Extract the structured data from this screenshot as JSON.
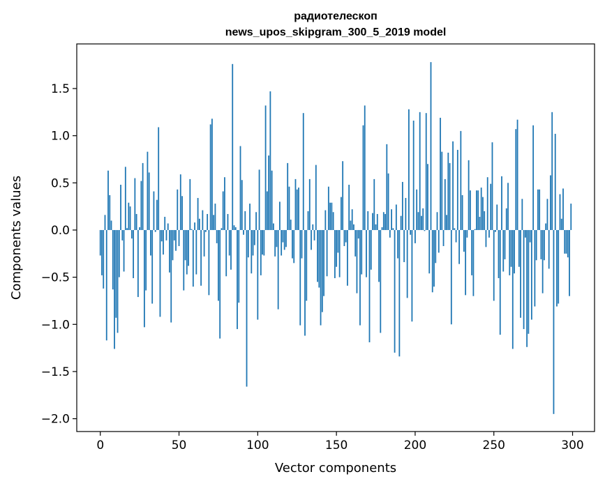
{
  "chart_data": {
    "type": "bar",
    "title": [
      "радиотелескоп",
      "news_upos_skipgram_300_5_2019 model"
    ],
    "xlabel": "Vector components",
    "ylabel": "Components values",
    "xlim": [
      -14.95,
      313.95
    ],
    "ylim": [
      -2.136,
      1.973
    ],
    "xticks": [
      0,
      50,
      100,
      150,
      200,
      250,
      300
    ],
    "xtick_labels": [
      "0",
      "50",
      "100",
      "150",
      "200",
      "250",
      "300"
    ],
    "yticks": [
      -2.0,
      -1.5,
      -1.0,
      -0.5,
      0.0,
      0.5,
      1.0,
      1.5
    ],
    "ytick_labels": [
      "−2.0",
      "−1.5",
      "−1.0",
      "−0.5",
      "0.0",
      "0.5",
      "1.0",
      "1.5"
    ],
    "grid": false,
    "bar_color": "#1f77b4",
    "bar_width": 0.8,
    "values": [
      -0.27,
      -0.48,
      -0.62,
      0.16,
      -1.17,
      0.63,
      0.37,
      0.1,
      -0.63,
      -1.26,
      -0.93,
      -1.09,
      -0.5,
      0.48,
      -0.11,
      -0.44,
      0.67,
      0.02,
      0.29,
      0.25,
      -0.09,
      -0.51,
      0.55,
      0.17,
      -0.71,
      0.03,
      0.52,
      0.71,
      -1.03,
      -0.64,
      0.83,
      0.61,
      -0.27,
      -0.78,
      0.41,
      -0.02,
      0.32,
      1.09,
      -0.92,
      -0.12,
      -0.26,
      0.14,
      -0.11,
      0.07,
      -0.45,
      -0.98,
      -0.32,
      -0.11,
      -0.22,
      0.43,
      -0.17,
      0.59,
      0.36,
      -0.64,
      -0.32,
      -0.47,
      -0.38,
      0.54,
      0.01,
      -0.6,
      0.08,
      -0.47,
      0.34,
      0.12,
      -0.59,
      0.21,
      -0.28,
      -0.02,
      0.17,
      -0.69,
      1.12,
      1.18,
      0.16,
      0.28,
      -0.14,
      -0.75,
      -1.15,
      0.02,
      0.41,
      0.56,
      -0.49,
      0.17,
      -0.27,
      -0.42,
      1.76,
      0.05,
      0.03,
      -1.05,
      -0.77,
      0.89,
      0.53,
      -0.05,
      0.2,
      -1.66,
      -0.29,
      0.28,
      -0.46,
      -0.27,
      -0.16,
      0.19,
      -0.95,
      0.64,
      -0.48,
      -0.26,
      -0.27,
      1.32,
      0.41,
      0.79,
      1.47,
      0.63,
      0.07,
      -0.28,
      -0.18,
      -0.84,
      0.3,
      -0.27,
      -0.13,
      -0.21,
      -0.18,
      0.71,
      0.46,
      0.11,
      -0.3,
      -0.35,
      0.54,
      0.43,
      0.45,
      -1.01,
      -0.3,
      1.24,
      -1.12,
      -0.75,
      0.2,
      0.54,
      -0.21,
      0.06,
      -0.11,
      0.69,
      -0.55,
      -0.61,
      -1.01,
      -0.87,
      -0.7,
      0.21,
      -0.49,
      0.46,
      0.29,
      0.29,
      0.19,
      -0.51,
      -0.39,
      -0.24,
      -0.5,
      0.35,
      0.73,
      -0.17,
      -0.13,
      -0.59,
      0.48,
      0.1,
      0.22,
      0.06,
      -0.28,
      -0.67,
      -0.09,
      -1.01,
      -0.47,
      1.11,
      1.32,
      -0.5,
      0.2,
      -1.19,
      -0.42,
      0.18,
      0.54,
      0.06,
      0.17,
      -0.55,
      -1.09,
      0.03,
      0.19,
      0.17,
      0.91,
      0.6,
      -0.08,
      0.22,
      0.02,
      -1.3,
      0.27,
      -0.3,
      -1.34,
      0.15,
      0.51,
      -0.34,
      0.34,
      -0.72,
      1.28,
      -0.05,
      -0.97,
      1.16,
      -0.14,
      0.43,
      0.19,
      1.25,
      0.15,
      0.23,
      -0.01,
      1.24,
      0.7,
      -0.46,
      1.78,
      -0.66,
      -0.6,
      -0.35,
      0.19,
      -0.24,
      1.19,
      0.83,
      -0.17,
      0.54,
      0.16,
      0.82,
      0.71,
      -1.0,
      0.94,
      0.02,
      -0.13,
      0.85,
      -0.36,
      1.05,
      0.37,
      -0.23,
      -0.69,
      -0.08,
      0.74,
      0.42,
      -0.48,
      -0.7,
      0.01,
      0.42,
      0.42,
      0.14,
      0.45,
      0.35,
      0.2,
      -0.18,
      0.56,
      -0.08,
      0.49,
      0.93,
      -0.75,
      -0.02,
      0.27,
      -0.51,
      -1.11,
      0.57,
      -0.44,
      -0.31,
      0.23,
      0.5,
      -0.48,
      -0.39,
      -1.26,
      -0.46,
      1.07,
      1.17,
      -0.39,
      -0.93,
      0.33,
      -1.05,
      -0.08,
      -1.24,
      -1.1,
      -0.13,
      -0.95,
      1.11,
      -0.81,
      -0.32,
      0.43,
      0.43,
      -0.31,
      -0.67,
      -0.32,
      0.07,
      0.33,
      -0.41,
      0.58,
      1.25,
      -1.95,
      1.02,
      -0.81,
      -0.78,
      0.38,
      0.12,
      0.44,
      -0.25,
      -0.25,
      -0.29,
      -0.7,
      0.28
    ]
  }
}
